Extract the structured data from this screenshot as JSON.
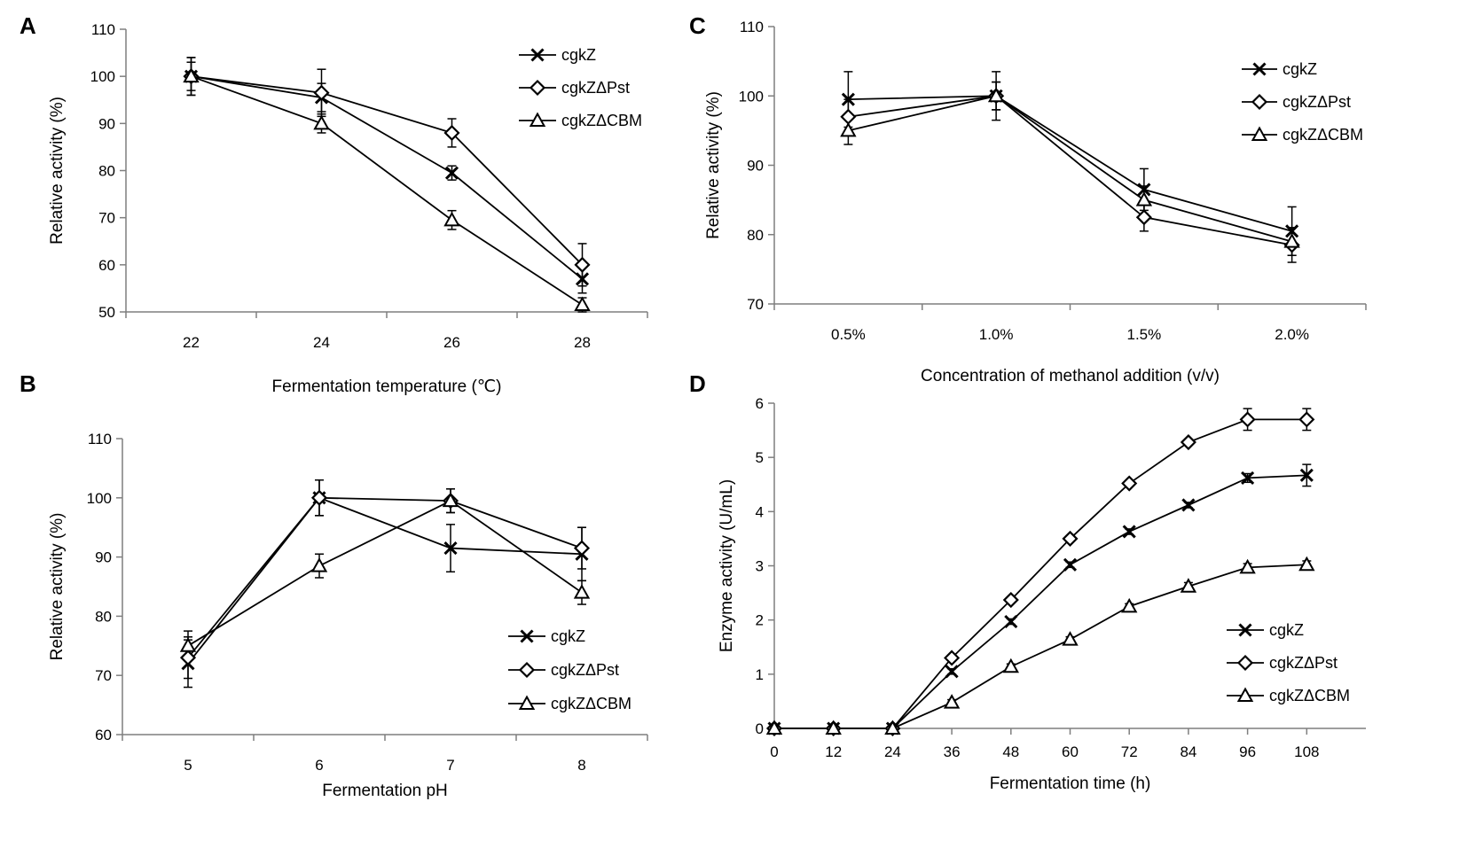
{
  "chart_data": [
    {
      "panel": "A",
      "type": "line",
      "xlabel": "Fermentation temperature (℃)",
      "ylabel": "Relative activity (%)",
      "categories": [
        "22",
        "24",
        "26",
        "28"
      ],
      "ylim": [
        50,
        110
      ],
      "yticks": [
        "50",
        "60",
        "70",
        "80",
        "90",
        "100",
        "110"
      ],
      "legend_position": "top-right",
      "series": [
        {
          "name": "cgkZ",
          "marker": "x",
          "values": [
            100,
            95.5,
            79.5,
            57
          ],
          "errors": [
            3,
            3,
            1.5,
            3
          ]
        },
        {
          "name": "cgkZΔPst",
          "marker": "diamond",
          "values": [
            100,
            96.5,
            88,
            60
          ],
          "errors": [
            4,
            5,
            3,
            4.5
          ]
        },
        {
          "name": "cgkZΔCBM",
          "marker": "triangle",
          "values": [
            100,
            90,
            69.5,
            51.5
          ],
          "errors": [
            4,
            2,
            2,
            1.5
          ]
        }
      ]
    },
    {
      "panel": "B",
      "type": "line",
      "xlabel": "Fermentation pH",
      "ylabel": "Relative activity (%)",
      "categories": [
        "5",
        "6",
        "7",
        "8"
      ],
      "ylim": [
        60,
        110
      ],
      "yticks": [
        "60",
        "70",
        "80",
        "90",
        "100",
        "110"
      ],
      "legend_position": "bottom-right",
      "series": [
        {
          "name": "cgkZ",
          "marker": "x",
          "values": [
            72,
            100,
            91.5,
            90.5
          ],
          "errors": [
            4,
            3,
            4,
            4.5
          ]
        },
        {
          "name": "cgkZΔPst",
          "marker": "diamond",
          "values": [
            73,
            100,
            99.5,
            91.5
          ],
          "errors": [
            3.5,
            3,
            2,
            3.5
          ]
        },
        {
          "name": "cgkZΔCBM",
          "marker": "triangle",
          "values": [
            75,
            88.5,
            99.5,
            84
          ],
          "errors": [
            2.5,
            2,
            2,
            2
          ]
        }
      ]
    },
    {
      "panel": "C",
      "type": "line",
      "xlabel": "Concentration of methanol addition (v/v)",
      "ylabel": "Relative activity (%)",
      "categories": [
        "0.5%",
        "1.0%",
        "1.5%",
        "2.0%"
      ],
      "ylim": [
        70,
        110
      ],
      "yticks": [
        "70",
        "80",
        "90",
        "100",
        "110"
      ],
      "legend_position": "top-right",
      "series": [
        {
          "name": "cgkZ",
          "marker": "x",
          "values": [
            99.5,
            100,
            86.5,
            80.5
          ],
          "errors": [
            4,
            3.5,
            3,
            3.5
          ]
        },
        {
          "name": "cgkZΔPst",
          "marker": "diamond",
          "values": [
            97,
            100,
            82.5,
            78.5
          ],
          "errors": [
            2.5,
            2,
            2,
            2.5
          ]
        },
        {
          "name": "cgkZΔCBM",
          "marker": "triangle",
          "values": [
            95,
            100,
            85,
            79
          ],
          "errors": [
            2,
            2,
            2,
            2
          ]
        }
      ]
    },
    {
      "panel": "D",
      "type": "line",
      "xlabel": "Fermentation time (h)",
      "ylabel": "Enzyme activity (U/mL)",
      "categories": [
        "0",
        "12",
        "24",
        "36",
        "48",
        "60",
        "72",
        "84",
        "96",
        "108"
      ],
      "ylim": [
        0,
        6
      ],
      "yticks": [
        "0",
        "1",
        "2",
        "3",
        "4",
        "5",
        "6"
      ],
      "legend_position": "bottom-right",
      "series": [
        {
          "name": "cgkZ",
          "marker": "x",
          "values": [
            0,
            0,
            0,
            1.05,
            1.97,
            3.02,
            3.63,
            4.12,
            4.62,
            4.67
          ],
          "errors": [
            0,
            0,
            0,
            0.05,
            0.05,
            0.05,
            0.05,
            0.05,
            0.08,
            0.2
          ]
        },
        {
          "name": "cgkZΔPst",
          "marker": "diamond",
          "values": [
            0,
            0,
            0,
            1.3,
            2.37,
            3.5,
            4.52,
            5.28,
            5.7,
            5.7
          ],
          "errors": [
            0,
            0,
            0,
            0.05,
            0.05,
            0.05,
            0.05,
            0.05,
            0.2,
            0.2
          ]
        },
        {
          "name": "cgkZΔCBM",
          "marker": "triangle",
          "values": [
            0,
            0,
            0,
            0.48,
            1.14,
            1.64,
            2.25,
            2.62,
            2.97,
            3.02
          ],
          "errors": [
            0,
            0,
            0,
            0.05,
            0.05,
            0.05,
            0.05,
            0.07,
            0.07,
            0.07
          ]
        }
      ]
    }
  ]
}
